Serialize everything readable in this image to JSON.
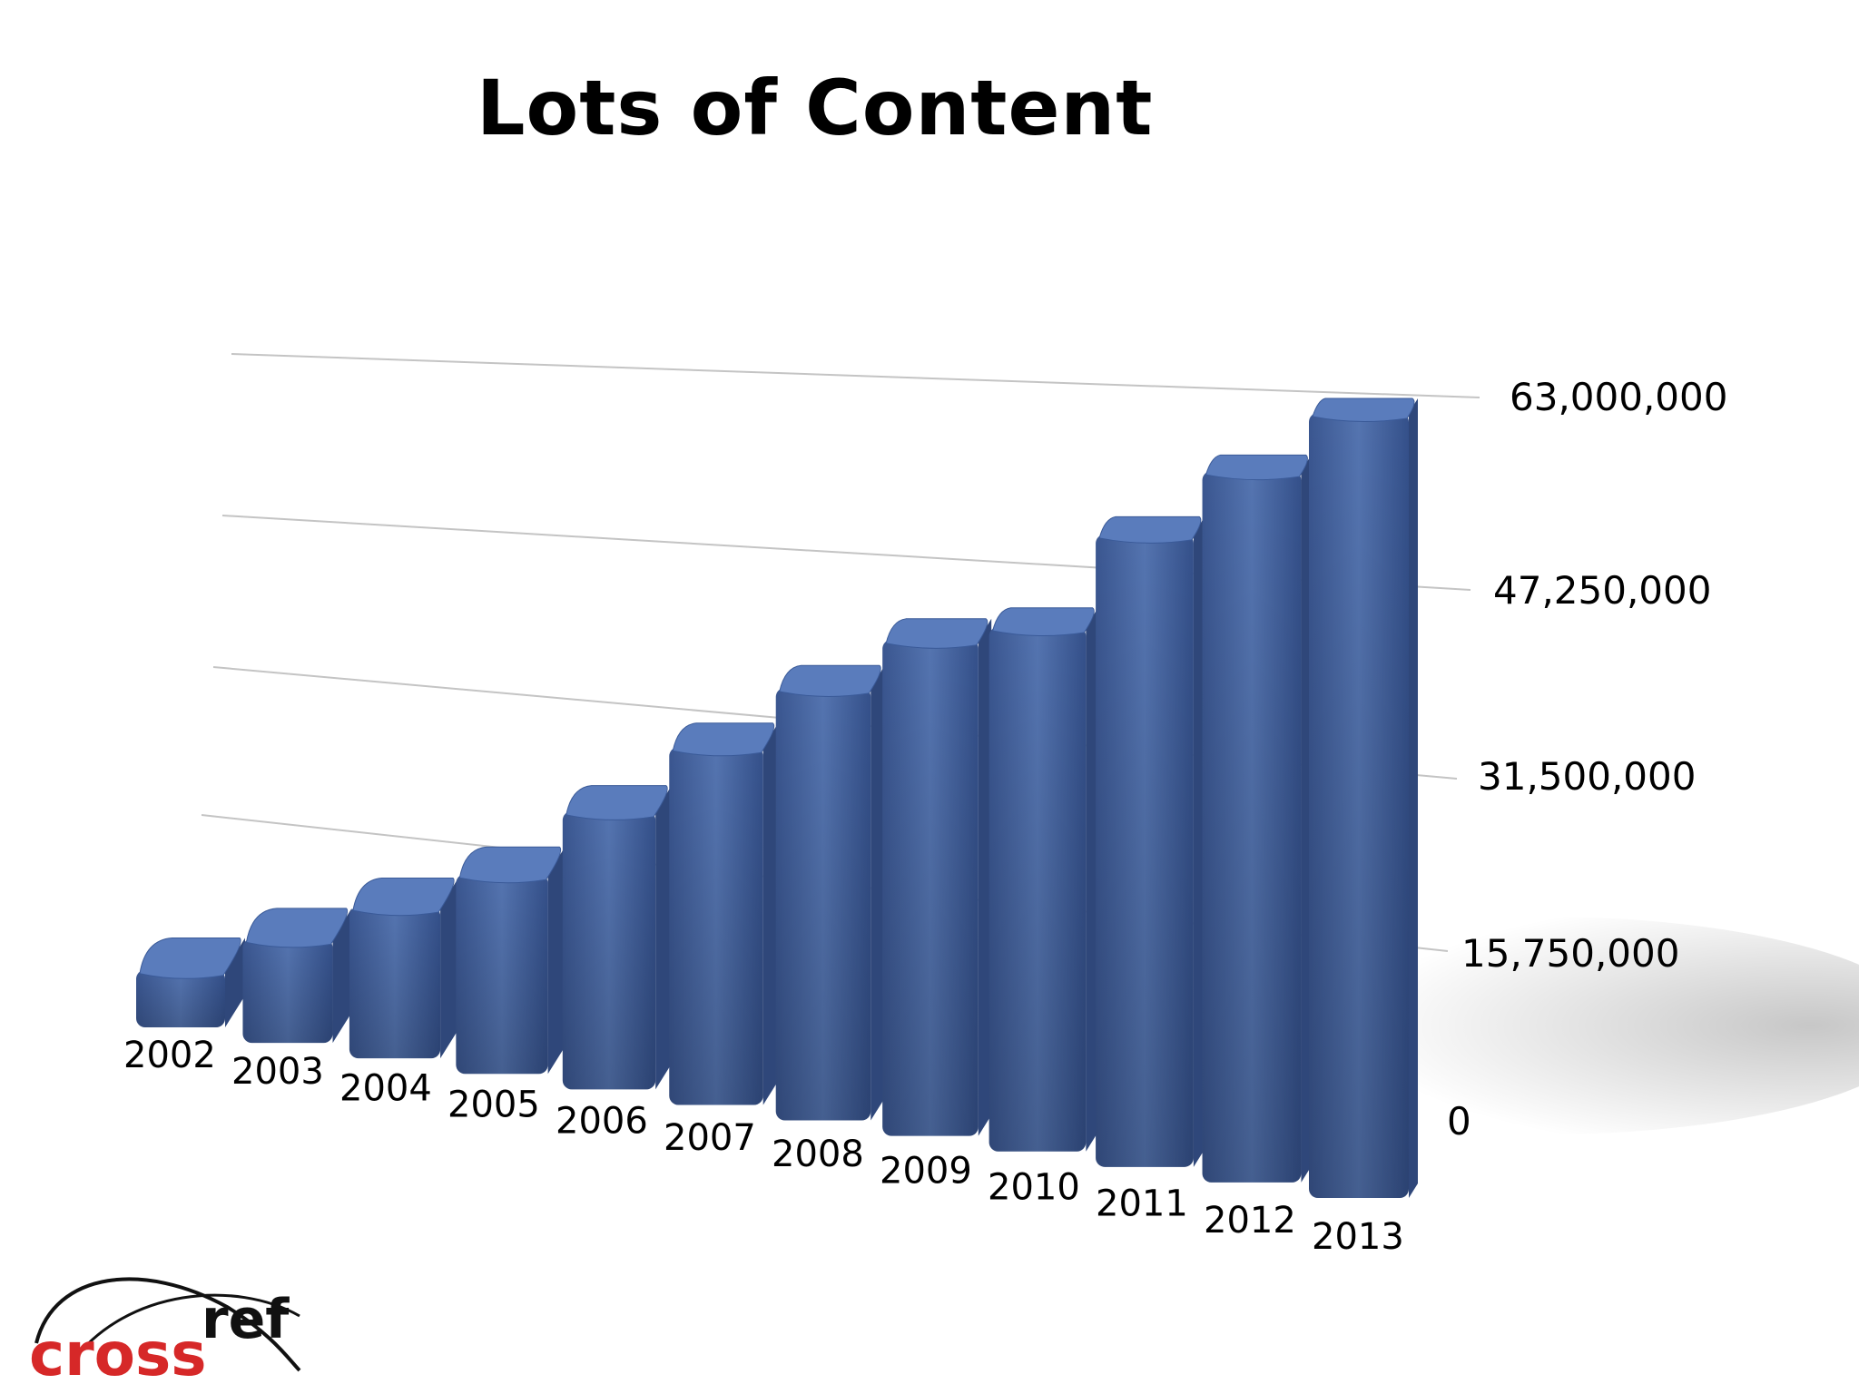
{
  "slide": {
    "title": "Lots of Content"
  },
  "chart_data": {
    "type": "bar",
    "title": "Lots of Content",
    "categories": [
      "2002",
      "2003",
      "2004",
      "2005",
      "2006",
      "2007",
      "2008",
      "2009",
      "2010",
      "2011",
      "2012",
      "2013"
    ],
    "series": [
      {
        "values": [
          5000000,
          9000000,
          13000000,
          17000000,
          23500000,
          30000000,
          36000000,
          41000000,
          43000000,
          51500000,
          57500000,
          63000000
        ]
      }
    ],
    "ylim": [
      0,
      63000000
    ],
    "y_ticks": [
      "0",
      "15,750,000",
      "31,500,000",
      "47,250,000",
      "63,000,000"
    ],
    "y_tick_values": [
      0,
      15750000,
      31500000,
      47250000,
      63000000
    ],
    "y_axis_side": "right",
    "grid": true,
    "legend": "none",
    "style": "3d-perspective",
    "bar_color": "#4a6aa5",
    "bar_top_color": "#5a7cbc"
  },
  "logo": {
    "text_cross": "cross",
    "text_ref": "ref",
    "cross_color": "#d62828",
    "ref_color": "#111111"
  }
}
